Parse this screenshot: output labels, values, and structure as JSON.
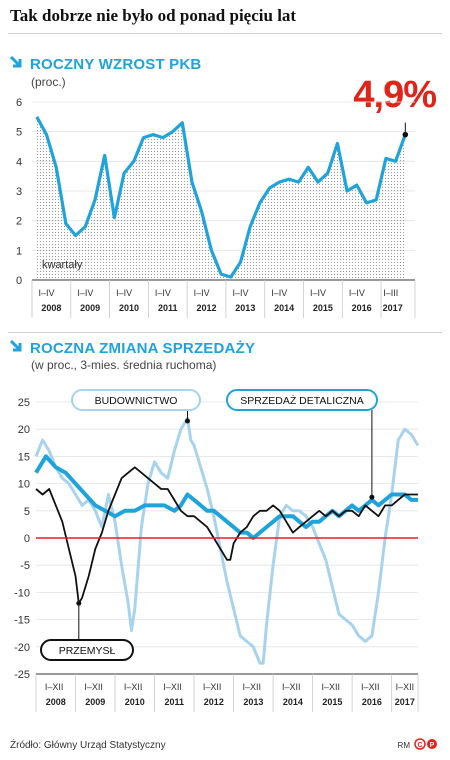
{
  "title": "Tak dobrze nie było od ponad pięciu lat",
  "source": "Źródło: Główny Urząd Statystyczny",
  "credit": "RM",
  "colors": {
    "accent": "#1fa3dc",
    "light_blue": "#a8d3ee",
    "red": "#e2231a",
    "black": "#111111"
  },
  "chart_data": [
    {
      "type": "line",
      "title": "ROCZNY WZROST PKB",
      "subtitle": "(proc.)",
      "highlight": "4,9%",
      "annotation": "kwartały",
      "ylim": [
        0,
        6
      ],
      "yticks": [
        0,
        1,
        2,
        3,
        4,
        5,
        6
      ],
      "xlim": [
        0,
        39.5
      ],
      "quarter_labels": [
        {
          "text": "I–IV",
          "q": 1.5
        },
        {
          "text": "I–IV",
          "q": 5.5
        },
        {
          "text": "I–IV",
          "q": 9.5
        },
        {
          "text": "I–IV",
          "q": 13.5
        },
        {
          "text": "I–IV",
          "q": 17.5
        },
        {
          "text": "I–IV",
          "q": 21.5
        },
        {
          "text": "I–IV",
          "q": 25.5
        },
        {
          "text": "I–IV",
          "q": 29.5
        },
        {
          "text": "I–IV",
          "q": 33.5
        },
        {
          "text": "I–III",
          "q": 37
        }
      ],
      "years": [
        "2008",
        "2009",
        "2010",
        "2011",
        "2012",
        "2013",
        "2014",
        "2015",
        "2016",
        "2017"
      ],
      "x_label_years": [
        "2008",
        "2009",
        "2010",
        "2011",
        "2012",
        "2013",
        "2014",
        "2015",
        "2016",
        "2017"
      ],
      "series": [
        {
          "values": [
            5.5,
            4.9,
            3.8,
            1.9,
            1.5,
            1.8,
            2.7,
            4.2,
            2.1,
            3.6,
            4.0,
            4.8,
            4.9,
            4.8,
            5.0,
            5.3,
            3.3,
            2.3,
            1.0,
            0.2,
            0.1,
            0.6,
            1.8,
            2.6,
            3.1,
            3.3,
            3.4,
            3.3,
            3.8,
            3.3,
            3.6,
            4.6,
            3.0,
            3.2,
            2.6,
            2.7,
            4.1,
            4.0,
            4.9
          ]
        }
      ]
    },
    {
      "type": "line",
      "title": "ROCZNA ZMIANA SPRZEDAŻY",
      "subtitle": "(w proc., 3-mies. średnia ruchoma)",
      "ylim": [
        -25,
        25
      ],
      "yticks": [
        25,
        20,
        15,
        10,
        5,
        0,
        -5,
        -10,
        -15,
        -20,
        -25
      ],
      "x_unit": "months since Jan 2008",
      "xlim": [
        0,
        116
      ],
      "month_labels": [
        {
          "text": "I–XII",
          "m": 5.5
        },
        {
          "text": "I–XII",
          "m": 17.5
        },
        {
          "text": "I–XII",
          "m": 29.5
        },
        {
          "text": "I–XII",
          "m": 41.5
        },
        {
          "text": "I–XII",
          "m": 53.5
        },
        {
          "text": "I–XII",
          "m": 65.5
        },
        {
          "text": "I–XII",
          "m": 77.5
        },
        {
          "text": "I–XII",
          "m": 89.5
        },
        {
          "text": "I–XII",
          "m": 101.5
        },
        {
          "text": "I–XII",
          "m": 112
        }
      ],
      "years": [
        "2008",
        "2009",
        "2010",
        "2011",
        "2012",
        "2013",
        "2014",
        "2015",
        "2016",
        "2017"
      ],
      "series": [
        {
          "name": "BUDOWNICTWO",
          "color": "#a8d3ee",
          "points": [
            [
              0,
              15
            ],
            [
              2,
              18
            ],
            [
              4,
              16
            ],
            [
              6,
              13
            ],
            [
              8,
              11
            ],
            [
              10,
              10
            ],
            [
              12,
              8
            ],
            [
              14,
              6
            ],
            [
              16,
              7
            ],
            [
              18,
              5
            ],
            [
              20,
              2
            ],
            [
              22,
              8
            ],
            [
              24,
              3
            ],
            [
              26,
              -5
            ],
            [
              28,
              -12
            ],
            [
              29,
              -17
            ],
            [
              30,
              -13
            ],
            [
              32,
              2
            ],
            [
              34,
              10
            ],
            [
              36,
              14
            ],
            [
              38,
              12
            ],
            [
              40,
              11
            ],
            [
              42,
              16
            ],
            [
              44,
              20
            ],
            [
              46,
              22
            ],
            [
              47,
              18
            ],
            [
              48,
              17
            ],
            [
              50,
              13
            ],
            [
              52,
              9
            ],
            [
              54,
              4
            ],
            [
              56,
              -2
            ],
            [
              58,
              -8
            ],
            [
              60,
              -13
            ],
            [
              62,
              -18
            ],
            [
              64,
              -19
            ],
            [
              66,
              -20
            ],
            [
              68,
              -23
            ],
            [
              69,
              -23
            ],
            [
              70,
              -16
            ],
            [
              72,
              -5
            ],
            [
              74,
              4
            ],
            [
              76,
              6
            ],
            [
              78,
              5
            ],
            [
              80,
              5
            ],
            [
              82,
              4
            ],
            [
              84,
              2
            ],
            [
              86,
              -1
            ],
            [
              88,
              -4
            ],
            [
              90,
              -9
            ],
            [
              92,
              -14
            ],
            [
              94,
              -15
            ],
            [
              96,
              -16
            ],
            [
              98,
              -18
            ],
            [
              100,
              -19
            ],
            [
              102,
              -18
            ],
            [
              104,
              -10
            ],
            [
              106,
              0
            ],
            [
              108,
              8
            ],
            [
              110,
              18
            ],
            [
              112,
              20
            ],
            [
              114,
              19
            ],
            [
              116,
              17
            ]
          ]
        },
        {
          "name": "SPRZEDAŻ DETALICZNA",
          "color": "#1fa3dc",
          "points": [
            [
              0,
              12
            ],
            [
              3,
              15
            ],
            [
              6,
              13
            ],
            [
              9,
              12
            ],
            [
              12,
              10
            ],
            [
              15,
              8
            ],
            [
              18,
              6
            ],
            [
              21,
              5
            ],
            [
              24,
              4
            ],
            [
              27,
              5
            ],
            [
              30,
              5
            ],
            [
              33,
              6
            ],
            [
              36,
              6
            ],
            [
              39,
              6
            ],
            [
              42,
              5
            ],
            [
              44,
              6
            ],
            [
              46,
              8
            ],
            [
              48,
              7
            ],
            [
              50,
              6
            ],
            [
              52,
              5
            ],
            [
              54,
              5
            ],
            [
              56,
              4
            ],
            [
              58,
              3
            ],
            [
              60,
              2
            ],
            [
              62,
              1
            ],
            [
              64,
              1
            ],
            [
              66,
              0
            ],
            [
              68,
              1
            ],
            [
              70,
              2
            ],
            [
              72,
              3
            ],
            [
              74,
              4
            ],
            [
              76,
              4
            ],
            [
              78,
              4
            ],
            [
              80,
              3
            ],
            [
              82,
              2
            ],
            [
              84,
              3
            ],
            [
              86,
              3
            ],
            [
              88,
              4
            ],
            [
              90,
              5
            ],
            [
              92,
              4
            ],
            [
              94,
              5
            ],
            [
              96,
              6
            ],
            [
              98,
              5
            ],
            [
              100,
              6
            ],
            [
              102,
              7
            ],
            [
              104,
              6
            ],
            [
              106,
              7
            ],
            [
              108,
              8
            ],
            [
              110,
              8
            ],
            [
              112,
              8
            ],
            [
              114,
              7
            ],
            [
              116,
              7
            ]
          ]
        },
        {
          "name": "PRZEMYSŁ",
          "color": "#111111",
          "points": [
            [
              0,
              9
            ],
            [
              2,
              8
            ],
            [
              4,
              9
            ],
            [
              6,
              6
            ],
            [
              8,
              3
            ],
            [
              10,
              -2
            ],
            [
              12,
              -7
            ],
            [
              13,
              -12
            ],
            [
              14,
              -11
            ],
            [
              16,
              -7
            ],
            [
              18,
              -2
            ],
            [
              20,
              1
            ],
            [
              22,
              5
            ],
            [
              24,
              8
            ],
            [
              26,
              11
            ],
            [
              28,
              12
            ],
            [
              30,
              13
            ],
            [
              32,
              12
            ],
            [
              34,
              11
            ],
            [
              36,
              10
            ],
            [
              38,
              9
            ],
            [
              40,
              9
            ],
            [
              42,
              7
            ],
            [
              44,
              5
            ],
            [
              46,
              4
            ],
            [
              48,
              4
            ],
            [
              50,
              3
            ],
            [
              52,
              2
            ],
            [
              54,
              0
            ],
            [
              56,
              -2
            ],
            [
              58,
              -4
            ],
            [
              59,
              -4
            ],
            [
              60,
              -1
            ],
            [
              62,
              1
            ],
            [
              64,
              2
            ],
            [
              66,
              4
            ],
            [
              68,
              5
            ],
            [
              70,
              5
            ],
            [
              72,
              6
            ],
            [
              74,
              5
            ],
            [
              76,
              3
            ],
            [
              78,
              1
            ],
            [
              80,
              2
            ],
            [
              82,
              3
            ],
            [
              84,
              4
            ],
            [
              86,
              5
            ],
            [
              88,
              4
            ],
            [
              90,
              5
            ],
            [
              92,
              4
            ],
            [
              94,
              5
            ],
            [
              96,
              5
            ],
            [
              98,
              4
            ],
            [
              100,
              6
            ],
            [
              102,
              5
            ],
            [
              104,
              4
            ],
            [
              106,
              6
            ],
            [
              108,
              6
            ],
            [
              110,
              7
            ],
            [
              112,
              8
            ],
            [
              114,
              8
            ],
            [
              116,
              8
            ]
          ]
        }
      ]
    }
  ]
}
